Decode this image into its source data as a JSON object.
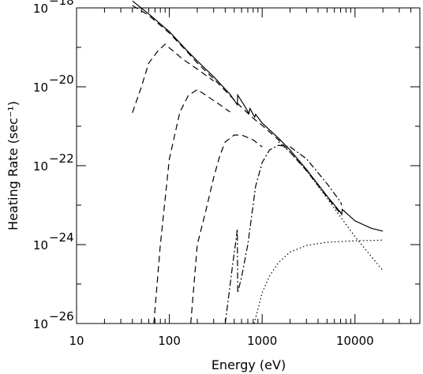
{
  "chart_data": {
    "type": "line",
    "title": "",
    "xlabel": "Energy (eV)",
    "ylabel": "Heating Rate (sec⁻¹)",
    "x_scale": "log",
    "y_scale": "log",
    "xlim": [
      10,
      50000
    ],
    "ylim": [
      1e-26,
      1e-18
    ],
    "grid": false,
    "legend": "none",
    "x_ticks": [
      {
        "value": 10,
        "label": "10"
      },
      {
        "value": 100,
        "label": "100"
      },
      {
        "value": 1000,
        "label": "1000"
      },
      {
        "value": 10000,
        "label": "10000"
      }
    ],
    "y_ticks": [
      {
        "value": 1e-26,
        "base": "10",
        "exp": "−26"
      },
      {
        "value": 1e-24,
        "base": "10",
        "exp": "−24"
      },
      {
        "value": 1e-22,
        "base": "10",
        "exp": "−22"
      },
      {
        "value": 1e-20,
        "base": "10",
        "exp": "−20"
      },
      {
        "value": 1e-18,
        "base": "10",
        "exp": "−18"
      }
    ],
    "series": [
      {
        "style": "solid",
        "points": [
          [
            40,
            1.5e-18
          ],
          [
            60,
            7e-19
          ],
          [
            100,
            2.5e-19
          ],
          [
            150,
            9e-20
          ],
          [
            200,
            4.5e-20
          ],
          [
            300,
            1.8e-20
          ],
          [
            450,
            6.5e-21
          ],
          [
            540,
            3.5e-21
          ],
          [
            545,
            6.2e-21
          ],
          [
            650,
            3.2e-21
          ],
          [
            720,
            2.1e-21
          ],
          [
            740,
            2.8e-21
          ],
          [
            830,
            1.7e-21
          ],
          [
            850,
            2e-21
          ],
          [
            1000,
            1.2e-21
          ],
          [
            1500,
            5e-22
          ],
          [
            2000,
            2.5e-22
          ],
          [
            3000,
            8e-23
          ],
          [
            5000,
            1.7e-23
          ],
          [
            7000,
            6.5e-24
          ],
          [
            7200,
            5.8e-24
          ],
          [
            7300,
            7.8e-24
          ],
          [
            10000,
            4e-24
          ],
          [
            15000,
            2.6e-24
          ],
          [
            20000,
            2.2e-24
          ]
        ]
      },
      {
        "style": "dashed",
        "points": [
          [
            40,
            1.15e-18
          ],
          [
            60,
            6.5e-19
          ],
          [
            100,
            2.3e-19
          ],
          [
            150,
            8.5e-20
          ],
          [
            200,
            4e-20
          ],
          [
            300,
            1.6e-20
          ],
          [
            450,
            6e-21
          ],
          [
            600,
            3e-21
          ],
          [
            800,
            1.6e-21
          ],
          [
            1000,
            1.05e-21
          ],
          [
            1500,
            4.5e-22
          ],
          [
            2000,
            2.2e-22
          ],
          [
            3000,
            7.5e-23
          ],
          [
            5000,
            1.6e-23
          ],
          [
            7000,
            6e-24
          ]
        ]
      },
      {
        "style": "dashed",
        "points": [
          [
            40,
            2.2e-21
          ],
          [
            50,
            1e-20
          ],
          [
            60,
            4e-20
          ],
          [
            75,
            8e-20
          ],
          [
            90,
            1.2e-19
          ],
          [
            110,
            8e-20
          ],
          [
            140,
            5e-20
          ],
          [
            200,
            2.8e-20
          ],
          [
            300,
            1.4e-20
          ]
        ]
      },
      {
        "style": "dashed",
        "points": [
          [
            68,
            1e-26
          ],
          [
            80,
            1e-24
          ],
          [
            100,
            1.5e-22
          ],
          [
            130,
            2.3e-21
          ],
          [
            160,
            6e-21
          ],
          [
            200,
            8.5e-21
          ],
          [
            250,
            6e-21
          ],
          [
            350,
            3.5e-21
          ],
          [
            450,
            2.3e-21
          ]
        ]
      },
      {
        "style": "dashed",
        "points": [
          [
            170,
            1e-26
          ],
          [
            200,
            1e-24
          ],
          [
            250,
            8e-24
          ],
          [
            300,
            5e-23
          ],
          [
            350,
            1.8e-22
          ],
          [
            400,
            4e-22
          ],
          [
            500,
            6e-22
          ],
          [
            600,
            6e-22
          ],
          [
            800,
            4.5e-22
          ],
          [
            1000,
            3e-22
          ]
        ]
      },
      {
        "style": "dashdot",
        "points": [
          [
            400,
            1e-26
          ],
          [
            480,
            3e-25
          ],
          [
            520,
            1.2e-24
          ],
          [
            540,
            2.5e-24
          ],
          [
            545,
            6e-26
          ],
          [
            600,
            1.5e-25
          ],
          [
            700,
            1e-24
          ],
          [
            850,
            3e-23
          ],
          [
            1000,
            1.2e-22
          ],
          [
            1200,
            2.5e-22
          ],
          [
            1500,
            3.3e-22
          ],
          [
            2000,
            3e-22
          ],
          [
            3000,
            1.5e-22
          ],
          [
            5000,
            3.5e-23
          ],
          [
            7000,
            1.2e-23
          ],
          [
            7200,
            1e-23
          ]
        ]
      },
      {
        "style": "dotted",
        "points": [
          [
            820,
            1e-26
          ],
          [
            1000,
            6e-26
          ],
          [
            1200,
            1.6e-25
          ],
          [
            1500,
            3.5e-25
          ],
          [
            2000,
            6.5e-25
          ],
          [
            3000,
            9.5e-25
          ],
          [
            5000,
            1.15e-24
          ],
          [
            10000,
            1.25e-24
          ],
          [
            20000,
            1.3e-24
          ]
        ]
      },
      {
        "style": "dotted",
        "points": [
          [
            1500,
            4e-22
          ],
          [
            2000,
            2.2e-22
          ],
          [
            3000,
            7.5e-23
          ],
          [
            5000,
            1.5e-23
          ],
          [
            7000,
            5e-24
          ],
          [
            10000,
            1.6e-24
          ],
          [
            15000,
            5e-25
          ],
          [
            20000,
            2.2e-25
          ]
        ]
      }
    ]
  }
}
